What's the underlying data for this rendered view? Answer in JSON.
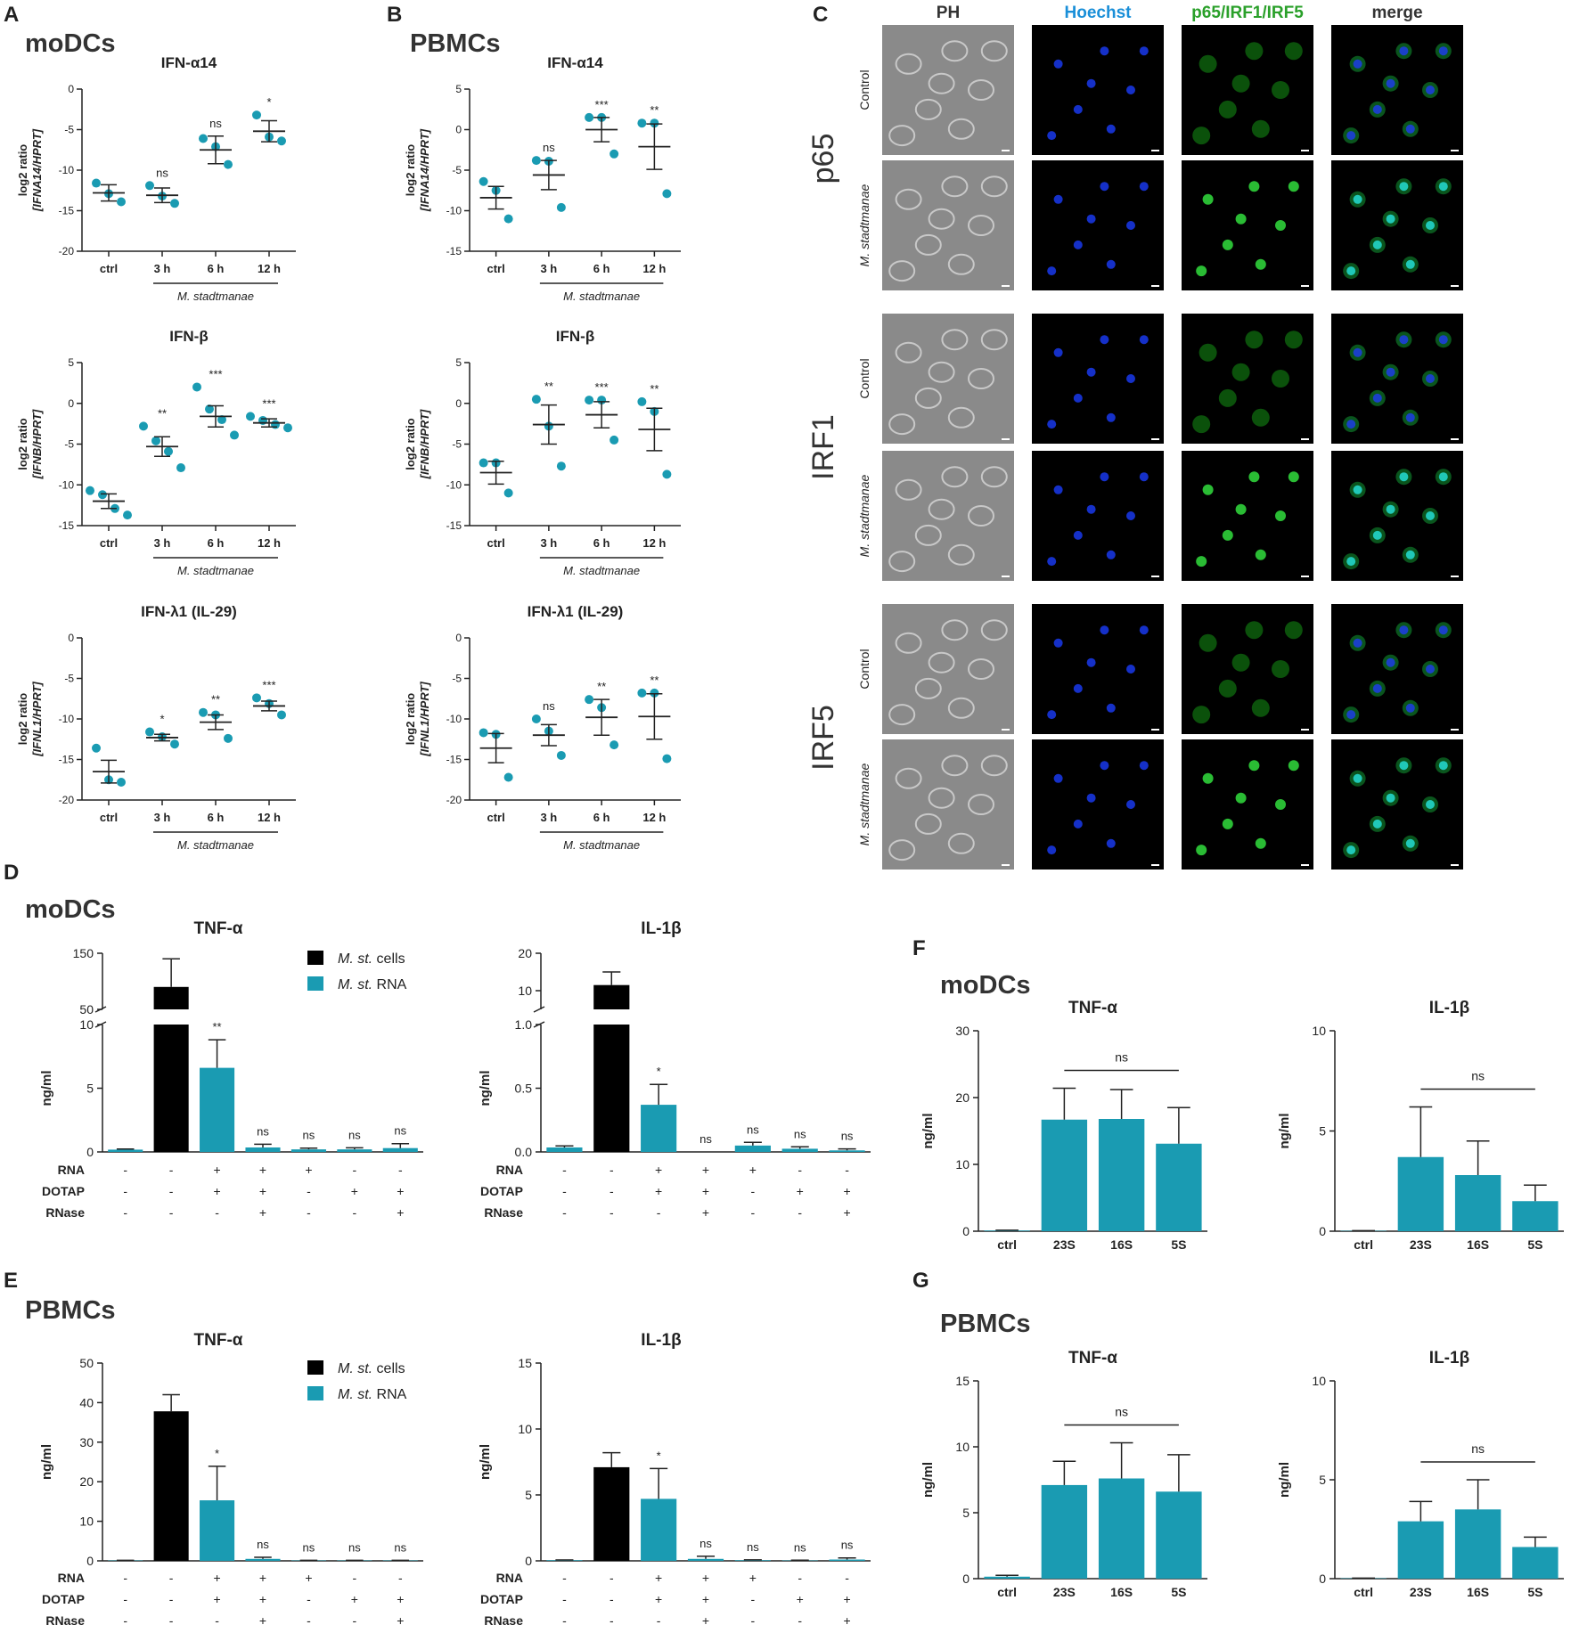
{
  "panel_labels": {
    "A": "A",
    "B": "B",
    "C": "C",
    "D": "D",
    "E": "E",
    "F": "F",
    "G": "G"
  },
  "cell_types": {
    "moDCs": "moDCs",
    "PBMCs": "PBMCs"
  },
  "colors": {
    "teal": "#1a9bb2",
    "black": "#000000"
  },
  "common": {
    "time_cats": [
      "ctrl",
      "3 h",
      "6 h",
      "12 h"
    ],
    "species_label": "M. stadtmanae",
    "treatment_rows": [
      {
        "label": "RNA",
        "signs": [
          "-",
          "-",
          "+",
          "+",
          "+",
          "-",
          "-"
        ]
      },
      {
        "label": "DOTAP",
        "signs": [
          "-",
          "-",
          "+",
          "+",
          "-",
          "+",
          "+"
        ]
      },
      {
        "label": "RNase",
        "signs": [
          "-",
          "-",
          "-",
          "+",
          "-",
          "-",
          "+"
        ]
      }
    ],
    "legend": [
      {
        "name": "M. st. cells",
        "italic": "M. st.",
        "rest": " cells",
        "color": "#000000"
      },
      {
        "name": "M. st. RNA",
        "italic": "M. st.",
        "rest": " RNA",
        "color": "#1a9bb2"
      }
    ],
    "frag_cats": [
      "ctrl",
      "23S",
      "16S",
      "5S"
    ]
  },
  "microscopy": {
    "columns": [
      {
        "label": "PH",
        "color": "#333333"
      },
      {
        "label": "Hoechst",
        "color": "#1a8fd8"
      },
      {
        "label": "p65/IRF1/IRF5",
        "color": "#2aa02a"
      },
      {
        "label": "merge",
        "color": "#333333"
      }
    ],
    "groups": [
      "p65",
      "IRF1",
      "IRF5"
    ],
    "rows": [
      "Control",
      "M. stadtmanae"
    ]
  },
  "chart_data": [
    {
      "id": "A1",
      "type": "scatter",
      "title": "IFN-α14",
      "ylabel": "log2 ratio",
      "ylabel2": "[IFNA14/HPRT]",
      "ylim": [
        -20,
        0
      ],
      "yticks": [
        0,
        -5,
        -10,
        -15,
        -20
      ],
      "categories": [
        "ctrl",
        "3 h",
        "6 h",
        "12 h"
      ],
      "points": [
        [
          -11.6,
          -12.9,
          -13.9
        ],
        [
          -11.9,
          -13.2,
          -14.1
        ],
        [
          -6.1,
          -7.1,
          -9.3
        ],
        [
          -3.2,
          -5.9,
          -6.4
        ]
      ],
      "mean": [
        -12.8,
        -13.1,
        -7.5,
        -5.2
      ],
      "sem": [
        1.0,
        0.9,
        1.7,
        1.3
      ],
      "sig": [
        "",
        "ns",
        "ns",
        "*"
      ],
      "xgroup": "M. stadtmanae"
    },
    {
      "id": "B1",
      "type": "scatter",
      "title": "IFN-α14",
      "ylabel": "log2 ratio",
      "ylabel2": "[IFNA14/HPRT]",
      "ylim": [
        -15,
        5
      ],
      "yticks": [
        5,
        0,
        -5,
        -10,
        -15
      ],
      "categories": [
        "ctrl",
        "3 h",
        "6 h",
        "12 h"
      ],
      "points": [
        [
          -6.4,
          -7.5,
          -11.0
        ],
        [
          -3.8,
          -3.9,
          -9.6
        ],
        [
          1.5,
          1.5,
          -3.0
        ],
        [
          0.8,
          0.8,
          -7.9
        ]
      ],
      "mean": [
        -8.4,
        -5.6,
        0.0,
        -2.1
      ],
      "sem": [
        1.4,
        1.8,
        1.5,
        2.8
      ],
      "sig": [
        "",
        "ns",
        "***",
        "**"
      ],
      "xgroup": "M. stadtmanae"
    },
    {
      "id": "A2",
      "type": "scatter",
      "title": "IFN-β",
      "ylabel": "log2 ratio",
      "ylabel2": "[IFNB/HPRT]",
      "ylim": [
        -15,
        5
      ],
      "yticks": [
        5,
        0,
        -5,
        -10,
        -15
      ],
      "categories": [
        "ctrl",
        "3 h",
        "6 h",
        "12 h"
      ],
      "points": [
        [
          -10.7,
          -11.2,
          -12.9,
          -13.7
        ],
        [
          -2.8,
          -4.6,
          -5.9,
          -7.9
        ],
        [
          2.0,
          -0.7,
          -2.0,
          -3.9
        ],
        [
          -1.6,
          -2.1,
          -2.6,
          -3.0
        ]
      ],
      "mean": [
        -12.0,
        -5.3,
        -1.6,
        -2.4
      ],
      "sem": [
        0.9,
        1.2,
        1.3,
        0.5
      ],
      "sig": [
        "",
        "**",
        "***",
        "***"
      ],
      "xgroup": "M. stadtmanae"
    },
    {
      "id": "B2",
      "type": "scatter",
      "title": "IFN-β",
      "ylabel": "log2 ratio",
      "ylabel2": "[IFNB/HPRT]",
      "ylim": [
        -15,
        5
      ],
      "yticks": [
        5,
        0,
        -5,
        -10,
        -15
      ],
      "categories": [
        "ctrl",
        "3 h",
        "6 h",
        "12 h"
      ],
      "points": [
        [
          -7.3,
          -7.3,
          -11.0
        ],
        [
          0.5,
          -2.8,
          -7.7
        ],
        [
          0.4,
          0.4,
          -4.5
        ],
        [
          0.2,
          -1.0,
          -8.7
        ]
      ],
      "mean": [
        -8.5,
        -2.6,
        -1.4,
        -3.2
      ],
      "sem": [
        1.4,
        2.4,
        1.6,
        2.6
      ],
      "sig": [
        "",
        "**",
        "***",
        "**"
      ],
      "xgroup": "M. stadtmanae"
    },
    {
      "id": "A3",
      "type": "scatter",
      "title": "IFN-λ1 (IL-29)",
      "ylabel": "log2 ratio",
      "ylabel2": "[IFNL1/HPRT]",
      "ylim": [
        -20,
        0
      ],
      "yticks": [
        0,
        -5,
        -10,
        -15,
        -20
      ],
      "categories": [
        "ctrl",
        "3 h",
        "6 h",
        "12 h"
      ],
      "points": [
        [
          -13.6,
          -17.5,
          -17.8
        ],
        [
          -11.6,
          -12.2,
          -13.1
        ],
        [
          -9.2,
          -9.5,
          -12.4
        ],
        [
          -7.4,
          -8.1,
          -9.5
        ]
      ],
      "mean": [
        -16.5,
        -12.3,
        -10.4,
        -8.4
      ],
      "sem": [
        1.4,
        0.4,
        0.9,
        0.6
      ],
      "sig": [
        "",
        "*",
        "**",
        "***"
      ],
      "xgroup": "M. stadtmanae"
    },
    {
      "id": "B3",
      "type": "scatter",
      "title": "IFN-λ1 (IL-29)",
      "ylabel": "log2 ratio",
      "ylabel2": "[IFNL1/HPRT]",
      "ylim": [
        -20,
        0
      ],
      "yticks": [
        0,
        -5,
        -10,
        -15,
        -20
      ],
      "categories": [
        "ctrl",
        "3 h",
        "6 h",
        "12 h"
      ],
      "points": [
        [
          -11.7,
          -11.9,
          -17.2
        ],
        [
          -10.0,
          -11.5,
          -14.5
        ],
        [
          -7.6,
          -8.6,
          -13.2
        ],
        [
          -6.8,
          -6.8,
          -14.9
        ]
      ],
      "mean": [
        -13.6,
        -12.0,
        -9.8,
        -9.7
      ],
      "sem": [
        1.8,
        1.3,
        2.2,
        2.8
      ],
      "sig": [
        "",
        "ns",
        "**",
        "**"
      ],
      "xgroup": "M. stadtmanae"
    },
    {
      "id": "D1",
      "type": "bar",
      "title": "TNF-α",
      "ylabel": "ng/ml",
      "broken": true,
      "lower": {
        "max": 10,
        "ticks": [
          0,
          5,
          10
        ]
      },
      "upper": {
        "min": 50,
        "max": 150,
        "ticks": [
          50,
          150
        ]
      },
      "values": [
        0.18,
        90,
        6.6,
        0.35,
        0.2,
        0.2,
        0.3
      ],
      "err": [
        0.05,
        50,
        2.2,
        0.25,
        0.1,
        0.12,
        0.35
      ],
      "colors": [
        "teal",
        "black",
        "teal",
        "teal",
        "teal",
        "teal",
        "teal"
      ],
      "sig": [
        "",
        "",
        "**",
        "ns",
        "ns",
        "ns",
        "ns"
      ]
    },
    {
      "id": "D2",
      "type": "bar",
      "title": "IL-1β",
      "ylabel": "ng/ml",
      "broken": true,
      "lower": {
        "max": 1.0,
        "ticks": [
          0.0,
          0.5,
          1.0
        ]
      },
      "upper": {
        "min": 5,
        "max": 20,
        "ticks": [
          10,
          20
        ]
      },
      "values": [
        0.035,
        11.5,
        0.37,
        0,
        0.05,
        0.025,
        0.012
      ],
      "err": [
        0.012,
        3.5,
        0.16,
        0,
        0.025,
        0.015,
        0.012
      ],
      "colors": [
        "teal",
        "black",
        "teal",
        "teal",
        "teal",
        "teal",
        "teal"
      ],
      "sig": [
        "",
        "",
        "*",
        "ns",
        "ns",
        "ns",
        "ns"
      ]
    },
    {
      "id": "E1",
      "type": "bar",
      "title": "TNF-α",
      "ylabel": "ng/ml",
      "ylim": [
        0,
        50
      ],
      "yticks": [
        0,
        10,
        20,
        30,
        40,
        50
      ],
      "values": [
        0.1,
        37.8,
        15.3,
        0.5,
        0.1,
        0.1,
        0.1
      ],
      "err": [
        0.05,
        4.2,
        8.6,
        0.4,
        0.05,
        0.05,
        0.05
      ],
      "colors": [
        "teal",
        "black",
        "teal",
        "teal",
        "teal",
        "teal",
        "teal"
      ],
      "sig": [
        "",
        "",
        "*",
        "ns",
        "ns",
        "ns",
        "ns"
      ]
    },
    {
      "id": "E2",
      "type": "bar",
      "title": "IL-1β",
      "ylabel": "ng/ml",
      "ylim": [
        0,
        15
      ],
      "yticks": [
        0,
        5,
        10,
        15
      ],
      "values": [
        0.05,
        7.1,
        4.7,
        0.15,
        0.05,
        0.03,
        0.1
      ],
      "err": [
        0.02,
        1.1,
        2.3,
        0.2,
        0.03,
        0.02,
        0.12
      ],
      "colors": [
        "teal",
        "black",
        "teal",
        "teal",
        "teal",
        "teal",
        "teal"
      ],
      "sig": [
        "",
        "",
        "*",
        "ns",
        "ns",
        "ns",
        "ns"
      ]
    },
    {
      "id": "F1",
      "type": "bar",
      "title": "TNF-α",
      "ylabel": "ng/ml",
      "ylim": [
        0,
        30
      ],
      "yticks": [
        0,
        10,
        20,
        30
      ],
      "categories": [
        "ctrl",
        "23S",
        "16S",
        "5S"
      ],
      "values": [
        0.1,
        16.7,
        16.8,
        13.1
      ],
      "err": [
        0.05,
        4.7,
        4.4,
        5.4
      ],
      "ns_label": "ns"
    },
    {
      "id": "F2",
      "type": "bar",
      "title": "IL-1β",
      "ylabel": "ng/ml",
      "ylim": [
        0,
        10
      ],
      "yticks": [
        0,
        5,
        10
      ],
      "categories": [
        "ctrl",
        "23S",
        "16S",
        "5S"
      ],
      "values": [
        0.02,
        3.7,
        2.8,
        1.5
      ],
      "err": [
        0.01,
        2.5,
        1.7,
        0.8
      ],
      "ns_label": "ns"
    },
    {
      "id": "G1",
      "type": "bar",
      "title": "TNF-α",
      "ylabel": "ng/ml",
      "ylim": [
        0,
        15
      ],
      "yticks": [
        0,
        5,
        10,
        15
      ],
      "categories": [
        "ctrl",
        "23S",
        "16S",
        "5S"
      ],
      "values": [
        0.15,
        7.1,
        7.6,
        6.6
      ],
      "err": [
        0.1,
        1.8,
        2.7,
        2.8
      ],
      "ns_label": "ns"
    },
    {
      "id": "G2",
      "type": "bar",
      "title": "IL-1β",
      "ylabel": "ng/ml",
      "ylim": [
        0,
        10
      ],
      "yticks": [
        0,
        5,
        10
      ],
      "categories": [
        "ctrl",
        "23S",
        "16S",
        "5S"
      ],
      "values": [
        0.02,
        2.9,
        3.5,
        1.6
      ],
      "err": [
        0.01,
        1.0,
        1.5,
        0.5
      ],
      "ns_label": "ns"
    }
  ]
}
